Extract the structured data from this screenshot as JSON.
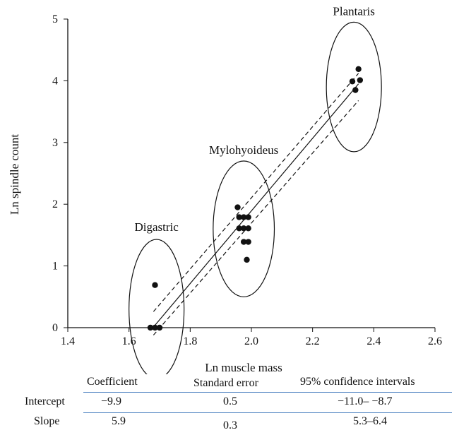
{
  "chart_data": {
    "type": "scatter",
    "xlabel": "Ln muscle mass",
    "ylabel": "Ln spindle count",
    "xlim": [
      1.4,
      2.6
    ],
    "ylim": [
      0,
      5
    ],
    "xticks": [
      "1.4",
      "1.6",
      "1.8",
      "2.0",
      "2.2",
      "2.4",
      "2.6"
    ],
    "yticks": [
      "0",
      "1",
      "2",
      "3",
      "4",
      "5"
    ],
    "grid": false,
    "points": [
      {
        "x": 1.67,
        "y": 0.0
      },
      {
        "x": 1.685,
        "y": 0.0
      },
      {
        "x": 1.7,
        "y": 0.0
      },
      {
        "x": 1.685,
        "y": 0.69
      },
      {
        "x": 1.955,
        "y": 1.95
      },
      {
        "x": 1.96,
        "y": 1.79
      },
      {
        "x": 1.975,
        "y": 1.79
      },
      {
        "x": 1.99,
        "y": 1.79
      },
      {
        "x": 1.96,
        "y": 1.61
      },
      {
        "x": 1.975,
        "y": 1.61
      },
      {
        "x": 1.99,
        "y": 1.61
      },
      {
        "x": 1.975,
        "y": 1.39
      },
      {
        "x": 1.99,
        "y": 1.39
      },
      {
        "x": 1.985,
        "y": 1.1
      },
      {
        "x": 2.33,
        "y": 3.99
      },
      {
        "x": 2.35,
        "y": 4.19
      },
      {
        "x": 2.355,
        "y": 4.01
      },
      {
        "x": 2.34,
        "y": 3.85
      }
    ],
    "regression": {
      "x": [
        1.68,
        2.35
      ],
      "y": [
        0.01,
        3.95
      ]
    },
    "confidence_band_upper": {
      "x": [
        1.68,
        2.35
      ],
      "y": [
        0.26,
        4.12
      ]
    },
    "confidence_band_lower": {
      "x": [
        1.68,
        2.35
      ],
      "y": [
        -0.12,
        3.68
      ]
    },
    "clusters": [
      {
        "label": "Digastric",
        "cx": 1.69,
        "cy": 0.3,
        "rx": 0.09,
        "ry": 1.13
      },
      {
        "label": "Mylohyoideus",
        "cx": 1.975,
        "cy": 1.6,
        "rx": 0.1,
        "ry": 1.1
      },
      {
        "label": "Plantaris",
        "cx": 2.335,
        "cy": 3.9,
        "rx": 0.09,
        "ry": 1.05
      }
    ]
  },
  "stats_table": {
    "headers": [
      "Coefficient",
      "Standard error",
      "95% confidence intervals"
    ],
    "rows": [
      {
        "label": "Intercept",
        "coefficient": "−9.9",
        "se": "0.5",
        "ci": "−11.0– −8.7"
      },
      {
        "label": "Slope",
        "coefficient": "5.9",
        "se": "0.3",
        "ci": "5.3–6.4"
      }
    ]
  }
}
